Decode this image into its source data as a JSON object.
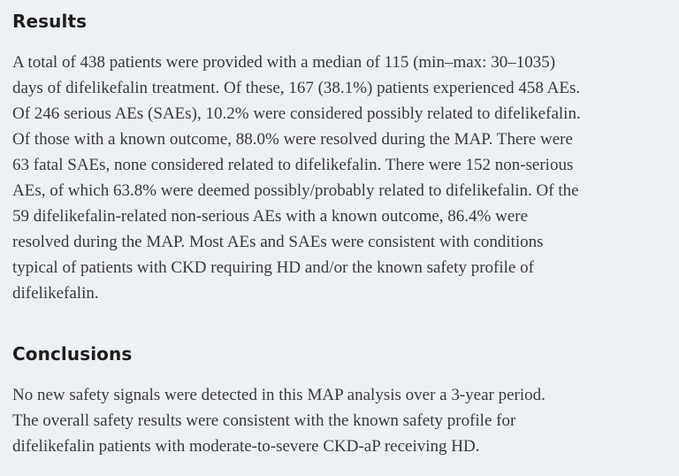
{
  "page": {
    "background_color": "#edf0f5",
    "heading_text_color": "#1e1e1e",
    "body_text_color": "#3a3a3a"
  },
  "sections": [
    {
      "heading": "Results",
      "lines": [
        "A total of 438 patients were provided with a median of 115 (min–max: 30–1035)",
        "days of difelikefalin treatment. Of these, 167 (38.1%) patients experienced 458 AEs.",
        "Of 246 serious AEs (SAEs), 10.2% were considered possibly related to difelikefalin.",
        "Of those with a known outcome, 88.0% were resolved during the MAP. There were",
        "63 fatal SAEs, none considered related to difelikefalin. There were 152 non-serious",
        "AEs, of which 63.8% were deemed possibly/probably related to difelikefalin. Of the",
        "59 difelikefalin-related non-serious AEs with a known outcome, 86.4% were",
        "resolved during the MAP. Most AEs and SAEs were consistent with conditions",
        "typical of patients with CKD requiring HD and/or the known safety profile of",
        "difelikefalin."
      ]
    },
    {
      "heading": "Conclusions",
      "lines": [
        "No new safety signals were detected in this MAP analysis over a 3-year period.",
        "The overall safety results were consistent with the known safety profile for",
        "difelikefalin patients with moderate-to-severe CKD-aP receiving HD."
      ]
    }
  ]
}
